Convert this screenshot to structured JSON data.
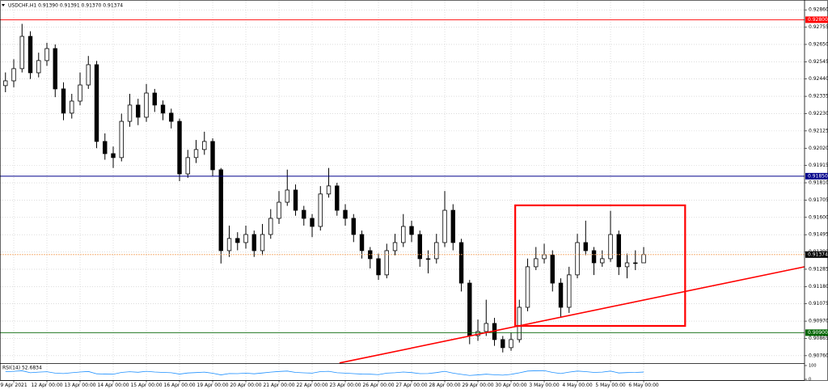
{
  "chart_data": {
    "type": "candlestick",
    "title": "USDCHF,H1  0.91390 0.91391 0.91370 0.91374",
    "color": "#000000",
    "open": [
      0.924,
      0.92429,
      0.92503,
      0.92699,
      0.92478,
      0.92552,
      0.92625,
      0.9238,
      0.92233,
      0.92306,
      0.92404,
      0.92527,
      0.92061,
      0.91987,
      0.91963,
      0.92183,
      0.92282,
      0.92208,
      0.92355,
      0.92282,
      0.92233,
      0.92183,
      0.91864,
      0.91963,
      0.92012,
      0.92061,
      0.91889,
      0.91398,
      0.91472,
      0.91447,
      0.91496,
      0.91398,
      0.91496,
      0.91594,
      0.91692,
      0.91766,
      0.91643,
      0.91594,
      0.91545,
      0.91742,
      0.91791,
      0.91643,
      0.91594,
      0.91496,
      0.91398,
      0.91349,
      0.91251,
      0.91398,
      0.91447,
      0.91545,
      0.91496,
      0.91349,
      0.91349,
      0.91447,
      0.91643,
      0.91447,
      0.91201,
      0.90882,
      0.90907,
      0.90956,
      0.90858,
      0.90809,
      0.90858,
      0.91054,
      0.913,
      0.91349,
      0.91373,
      0.91201,
      0.91054,
      0.91251,
      0.91447,
      0.91398,
      0.91324,
      0.91349,
      0.91496,
      0.913,
      0.91324,
      0.91324
    ],
    "high": [
      0.9248,
      0.9256,
      0.92775,
      0.9273,
      0.926,
      0.9266,
      0.9265,
      0.9242,
      0.9235,
      0.9248,
      0.9258,
      0.9255,
      0.9211,
      0.9203,
      0.9223,
      0.9235,
      0.9232,
      0.9241,
      0.9238,
      0.9231,
      0.9226,
      0.922,
      0.9201,
      0.9207,
      0.9212,
      0.9208,
      0.919,
      0.9155,
      0.9151,
      0.9155,
      0.9152,
      0.9156,
      0.9165,
      0.9176,
      0.9189,
      0.918,
      0.9167,
      0.9162,
      0.9179,
      0.919,
      0.9181,
      0.9168,
      0.9162,
      0.9152,
      0.9142,
      0.9138,
      0.9144,
      0.915,
      0.9162,
      0.9158,
      0.9152,
      0.914,
      0.915,
      0.9176,
      0.9168,
      0.9147,
      0.9122,
      0.9098,
      0.911,
      0.9099,
      0.9088,
      0.909,
      0.911,
      0.9135,
      0.9142,
      0.9144,
      0.914,
      0.9123,
      0.913,
      0.915,
      0.9158,
      0.9142,
      0.914,
      0.9164,
      0.9152,
      0.9138,
      0.914,
      0.9142
    ],
    "low": [
      0.9236,
      0.9239,
      0.9248,
      0.9244,
      0.9245,
      0.9252,
      0.9233,
      0.9219,
      0.922,
      0.9228,
      0.9238,
      0.9202,
      0.9195,
      0.919,
      0.9194,
      0.9215,
      0.9216,
      0.9218,
      0.9224,
      0.9219,
      0.9214,
      0.9182,
      0.9184,
      0.9193,
      0.9198,
      0.9185,
      0.9132,
      0.9136,
      0.914,
      0.9141,
      0.9136,
      0.9137,
      0.9147,
      0.9156,
      0.9167,
      0.9161,
      0.9155,
      0.9148,
      0.9152,
      0.9172,
      0.9161,
      0.9155,
      0.9145,
      0.9135,
      0.9129,
      0.9122,
      0.9123,
      0.9137,
      0.9142,
      0.9145,
      0.913,
      0.9126,
      0.9132,
      0.9142,
      0.914,
      0.9115,
      0.9083,
      0.9085,
      0.9088,
      0.9082,
      0.9078,
      0.9079,
      0.9084,
      0.9103,
      0.9128,
      0.9132,
      0.9115,
      0.9099,
      0.9102,
      0.9123,
      0.9137,
      0.9125,
      0.913,
      0.9133,
      0.9125,
      0.9123,
      0.9128,
      0.9133
    ],
    "close": [
      0.92429,
      0.92503,
      0.92699,
      0.92478,
      0.92552,
      0.92625,
      0.9238,
      0.92233,
      0.92306,
      0.92404,
      0.92527,
      0.92061,
      0.91987,
      0.91963,
      0.92183,
      0.92282,
      0.92208,
      0.92355,
      0.92282,
      0.92233,
      0.92183,
      0.91864,
      0.91963,
      0.92012,
      0.92061,
      0.91889,
      0.91398,
      0.91472,
      0.91447,
      0.91496,
      0.91398,
      0.91496,
      0.91594,
      0.91692,
      0.91766,
      0.91643,
      0.91594,
      0.91545,
      0.91742,
      0.91791,
      0.91643,
      0.91594,
      0.91496,
      0.91398,
      0.91349,
      0.91251,
      0.91398,
      0.91447,
      0.91545,
      0.91496,
      0.91349,
      0.91349,
      0.91447,
      0.91643,
      0.91447,
      0.91201,
      0.90882,
      0.90907,
      0.90956,
      0.90858,
      0.90809,
      0.90858,
      0.91054,
      0.913,
      0.91349,
      0.91373,
      0.91201,
      0.91054,
      0.91251,
      0.91447,
      0.91398,
      0.91324,
      0.91349,
      0.91496,
      0.913,
      0.91324,
      0.91324,
      0.91374
    ],
    "xlim": [
      -0.66,
      96.41
    ],
    "xticks": [
      {
        "value": 1,
        "label": "9 Apr 2021"
      },
      {
        "value": 5,
        "label": "12 Apr 00:00"
      },
      {
        "value": 9,
        "label": "13 Apr 00:00"
      },
      {
        "value": 13,
        "label": "14 Apr 00:00"
      },
      {
        "value": 17,
        "label": "15 Apr 00:00"
      },
      {
        "value": 21,
        "label": "16 Apr 00:00"
      },
      {
        "value": 25,
        "label": "19 Apr 00:00"
      },
      {
        "value": 29,
        "label": "20 Apr 00:00"
      },
      {
        "value": 33,
        "label": "21 Apr 00:00"
      },
      {
        "value": 37,
        "label": "22 Apr 00:00"
      },
      {
        "value": 41,
        "label": "23 Apr 00:00"
      },
      {
        "value": 45,
        "label": "26 Apr 00:00"
      },
      {
        "value": 49,
        "label": "27 Apr 00:00"
      },
      {
        "value": 53,
        "label": "28 Apr 00:00"
      },
      {
        "value": 57,
        "label": "29 Apr 00:00"
      },
      {
        "value": 61,
        "label": "30 Apr 00:00"
      },
      {
        "value": 65,
        "label": "3 May 00:00"
      },
      {
        "value": 69,
        "label": "4 May 00:00"
      },
      {
        "value": 73,
        "label": "5 May 00:00"
      },
      {
        "value": 77,
        "label": "6 May 00:00"
      }
    ],
    "ylim": [
      0.9072,
      0.9291
    ],
    "yticks": [
      {
        "value": 0.9286,
        "label": "0.92860"
      },
      {
        "value": 0.92755,
        "label": "0.92755"
      },
      {
        "value": 0.9265,
        "label": "0.92650"
      },
      {
        "value": 0.92545,
        "label": "0.92545"
      },
      {
        "value": 0.9244,
        "label": "0.92440"
      },
      {
        "value": 0.92335,
        "label": "0.92335"
      },
      {
        "value": 0.9223,
        "label": "0.92230"
      },
      {
        "value": 0.92125,
        "label": "0.92125"
      },
      {
        "value": 0.9202,
        "label": "0.92020"
      },
      {
        "value": 0.91915,
        "label": "0.91915"
      },
      {
        "value": 0.9181,
        "label": "0.91810"
      },
      {
        "value": 0.91705,
        "label": "0.91705"
      },
      {
        "value": 0.916,
        "label": "0.91600"
      },
      {
        "value": 0.91495,
        "label": "0.91495"
      },
      {
        "value": 0.9139,
        "label": "0.91390"
      },
      {
        "value": 0.91285,
        "label": "0.91285"
      },
      {
        "value": 0.9118,
        "label": "0.91180"
      },
      {
        "value": 0.91075,
        "label": "0.91075"
      },
      {
        "value": 0.9097,
        "label": "0.90970"
      },
      {
        "value": 0.90865,
        "label": "0.90865"
      },
      {
        "value": 0.9076,
        "label": "0.90760"
      }
    ],
    "grid": true,
    "levels": [
      {
        "value": 0.928,
        "label": "0.92800",
        "color": "#ff0000",
        "style": "solid"
      },
      {
        "value": 0.9185,
        "label": "0.91850",
        "color": "#00008b",
        "style": "solid"
      },
      {
        "value": 0.909,
        "label": "0.90900",
        "color": "#006400",
        "style": "solid"
      },
      {
        "value": 0.91374,
        "label": "0.91374",
        "color": "#000000",
        "line_color": "#f4a460",
        "style": "dotted"
      }
    ],
    "shapes": [
      {
        "kind": "rectangle",
        "x": [
          61.5,
          82
        ],
        "y": [
          0.91673,
          0.90941
        ],
        "color": "#ff0000"
      },
      {
        "kind": "trendline",
        "x": [
          40.3,
          96.41
        ],
        "y": [
          0.90716,
          0.913
        ],
        "color": "#ff0000"
      }
    ],
    "rsi": {
      "title": "RSI(14) 52.6834",
      "color": "#1e90ff",
      "ylim": [
        0,
        100
      ],
      "yticks": [
        100,
        0
      ],
      "values": [
        55,
        58,
        62,
        48,
        52,
        55,
        45,
        42,
        48,
        53,
        57,
        40,
        38,
        37,
        50,
        55,
        51,
        58,
        53,
        50,
        48,
        38,
        46,
        49,
        52,
        44,
        32,
        42,
        41,
        45,
        40,
        46,
        52,
        57,
        60,
        50,
        47,
        45,
        56,
        58,
        48,
        45,
        41,
        38,
        37,
        34,
        45,
        48,
        53,
        49,
        41,
        42,
        49,
        58,
        45,
        36,
        28,
        32,
        37,
        33,
        30,
        36,
        47,
        60,
        62,
        63,
        50,
        42,
        52,
        60,
        56,
        50,
        52,
        60,
        46,
        49,
        50,
        52.6834
      ]
    }
  }
}
